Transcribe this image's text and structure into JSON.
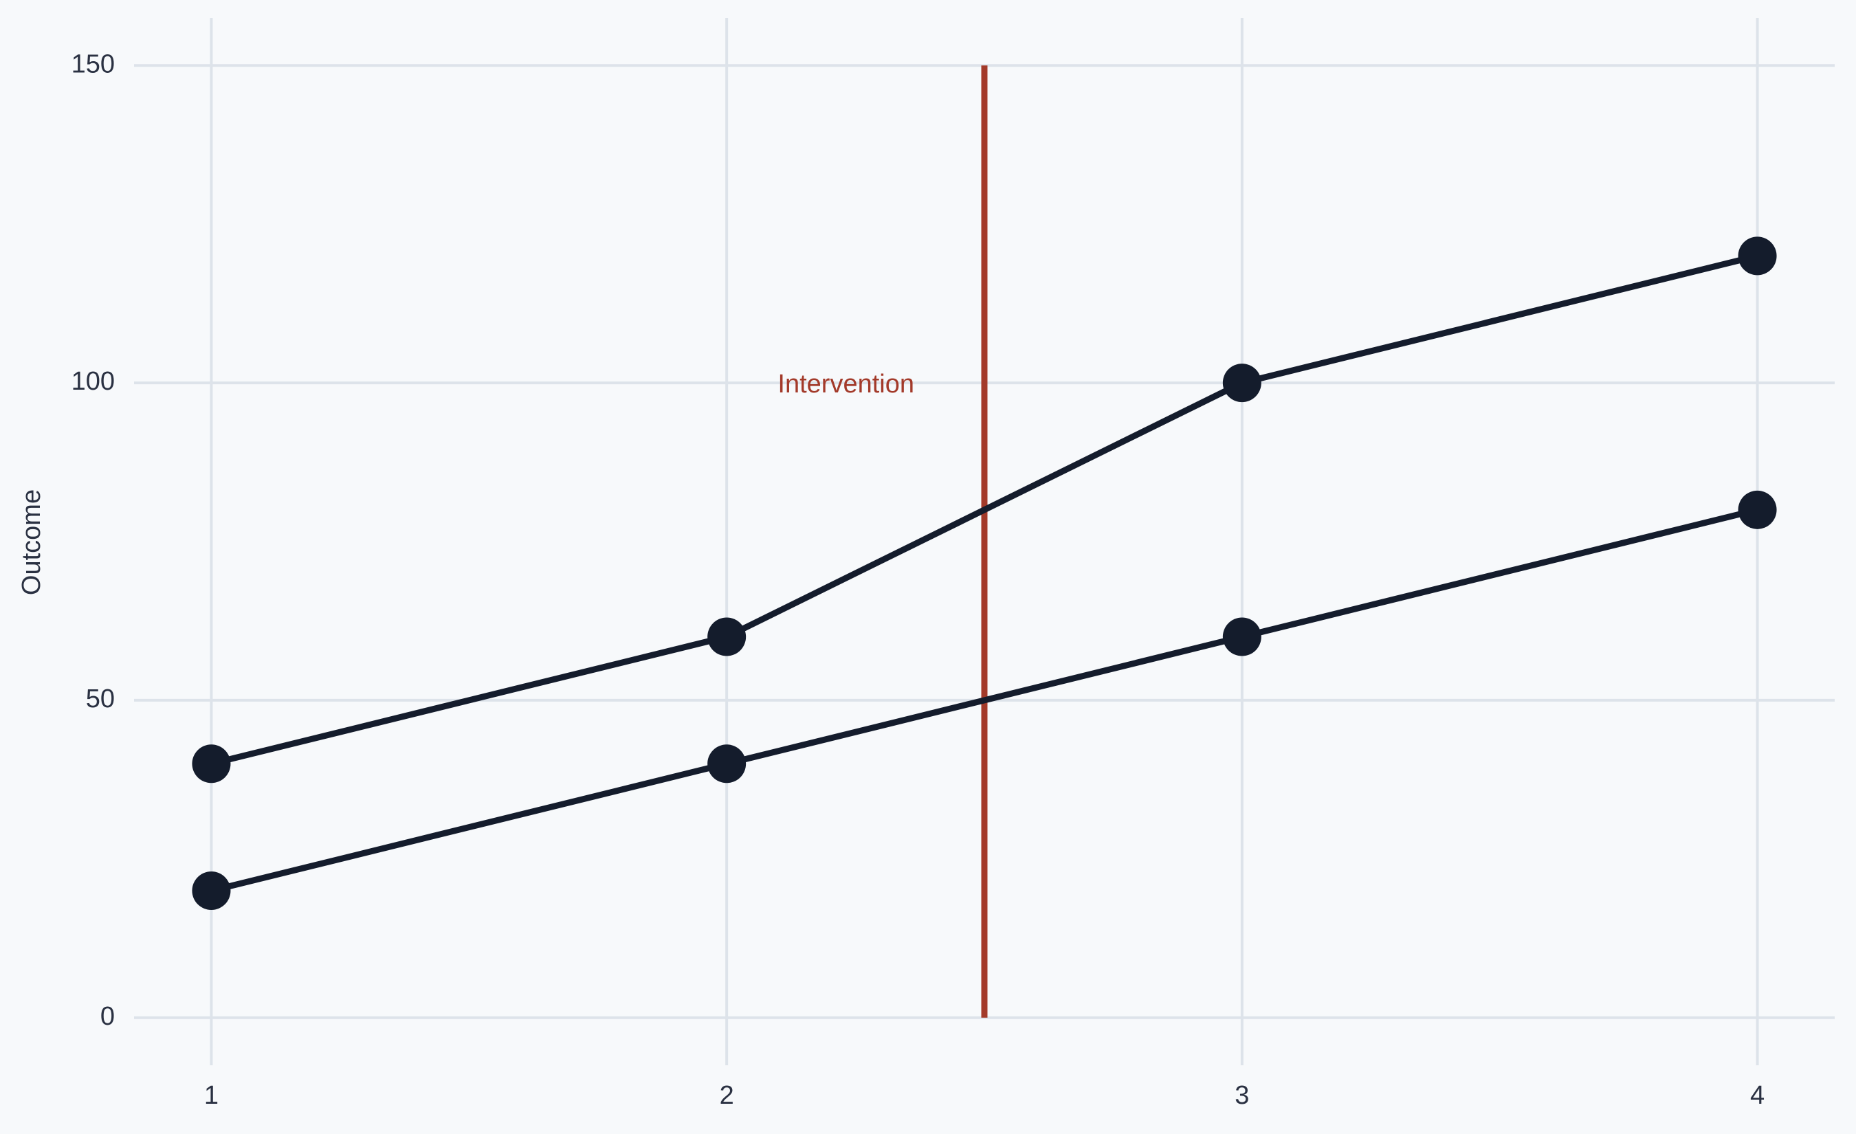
{
  "chart_data": {
    "type": "line",
    "y_label": "Outcome",
    "x": [
      1,
      2,
      3,
      4
    ],
    "series": [
      {
        "color": "#141c2c",
        "values": [
          40,
          60,
          100,
          120
        ]
      },
      {
        "color": "#141c2c",
        "values": [
          20,
          40,
          60,
          80
        ]
      }
    ],
    "xlim": [
      0.85,
      4.15
    ],
    "xticks": [
      1,
      2,
      3,
      4
    ],
    "ylim": [
      -7.5,
      157.5
    ],
    "yticks": [
      0,
      50,
      100,
      150
    ],
    "grid": true,
    "vline": {
      "x": 2.5,
      "ymin": 0,
      "ymax": 150,
      "label": "Intervention",
      "color": "#a33a2a"
    }
  }
}
